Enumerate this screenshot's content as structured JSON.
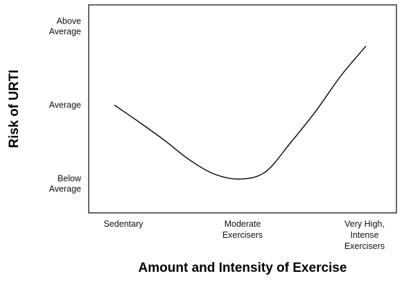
{
  "chart_data": {
    "type": "line",
    "title": "",
    "xlabel": "Amount and Intensity of Exercise",
    "ylabel": "Risk of URTI",
    "x_ticks": [
      "Sedentary",
      "Moderate\nExercisers",
      "Very High,\nIntense\nExercisers"
    ],
    "y_ticks": [
      "Below\nAverage",
      "Average",
      "Above\nAverage"
    ],
    "xlim": [
      0,
      2
    ],
    "ylim": [
      0,
      2
    ],
    "grid": false,
    "legend": "none",
    "series": [
      {
        "x": [
          0,
          0.2,
          0.4,
          0.6,
          0.8,
          1.0,
          1.2,
          1.4,
          1.6,
          1.8,
          2.0
        ],
        "values": [
          1.0,
          0.78,
          0.55,
          0.3,
          0.12,
          0.06,
          0.15,
          0.52,
          0.92,
          1.37,
          1.75
        ]
      }
    ]
  }
}
